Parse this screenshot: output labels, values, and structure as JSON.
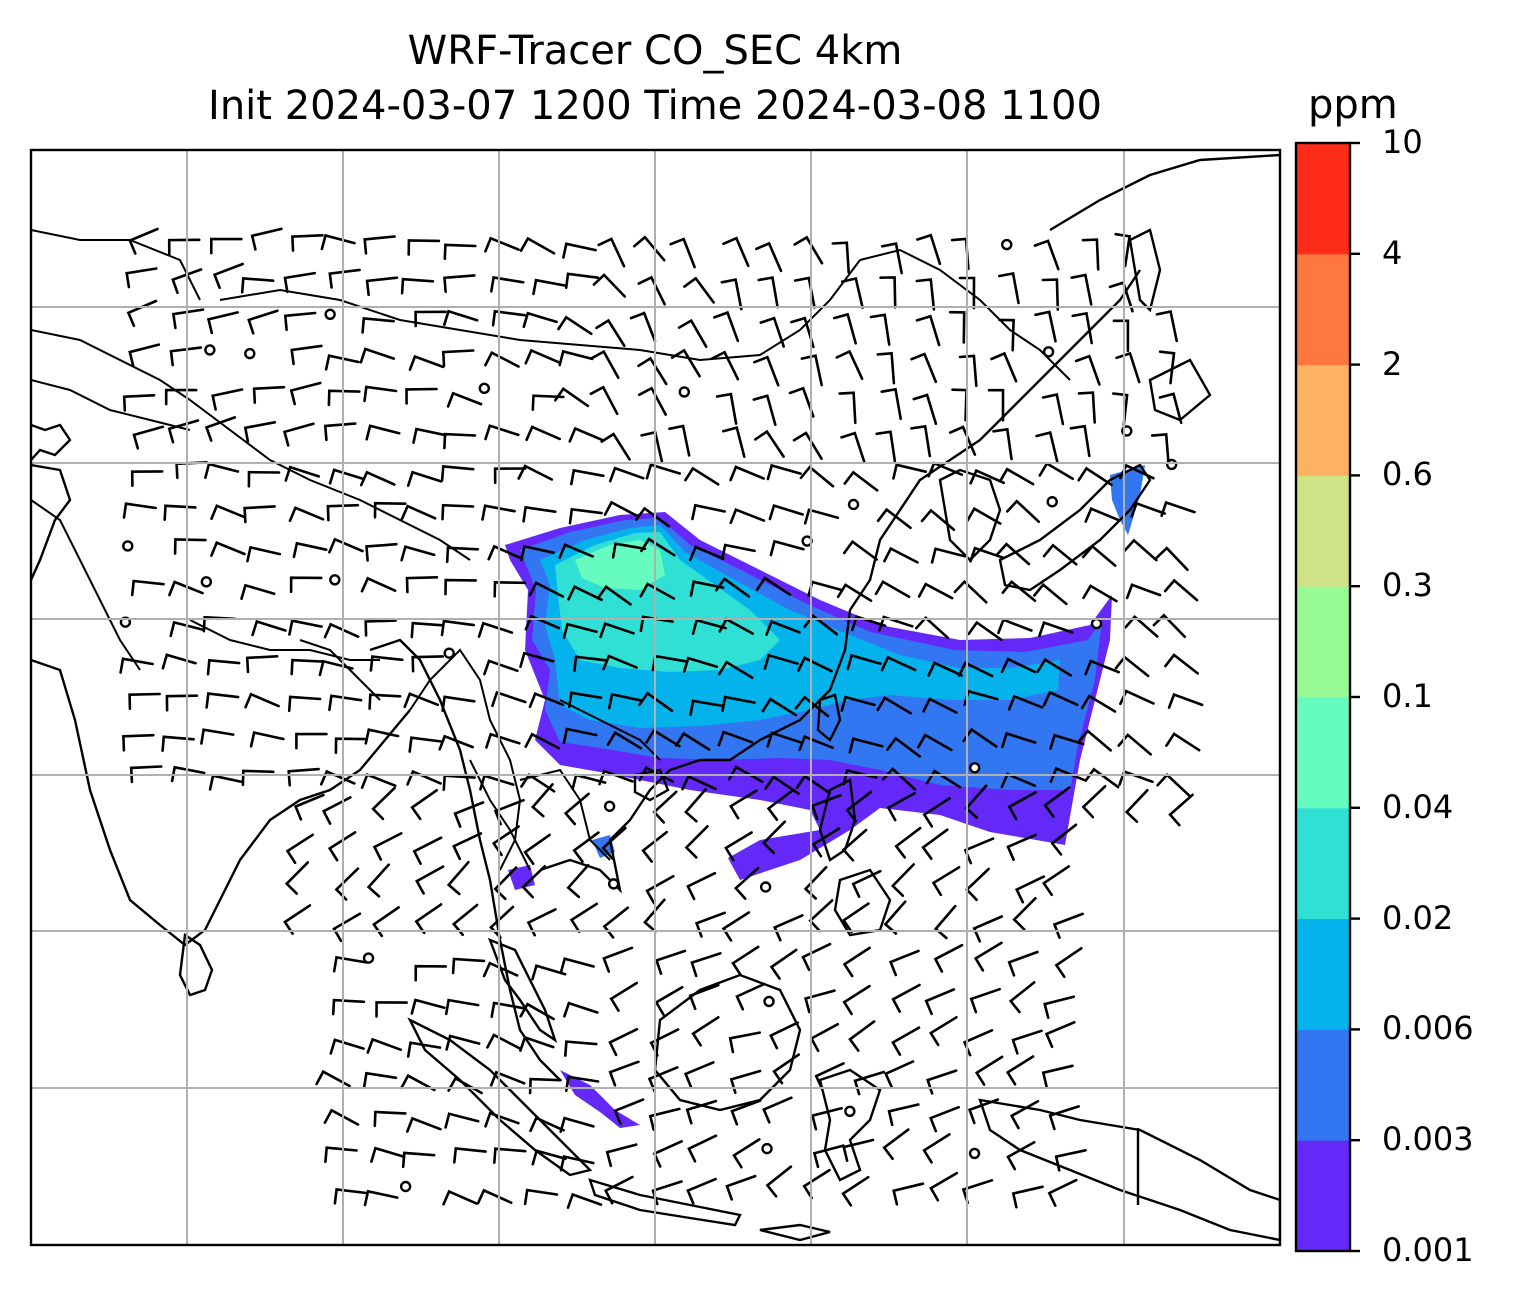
{
  "title": {
    "line1": "WRF-Tracer CO_SEC 4km",
    "line2": "Init 2024-03-07 1200 Time 2024-03-08 1100"
  },
  "colorbar": {
    "unit": "ppm",
    "levels": [
      "0.001",
      "0.003",
      "0.006",
      "0.02",
      "0.04",
      "0.1",
      "0.3",
      "0.6",
      "2",
      "4",
      "10"
    ],
    "colors": [
      "#6428f8",
      "#3276f2",
      "#04b2ec",
      "#30e0d4",
      "#66fcc0",
      "#98fa94",
      "#d0e286",
      "#fcb260",
      "#fe7640",
      "#fe2c18"
    ]
  },
  "map": {
    "grid": "on",
    "features": [
      "coastlines",
      "country-borders",
      "wind-barbs",
      "co-tracer-plume"
    ]
  }
}
